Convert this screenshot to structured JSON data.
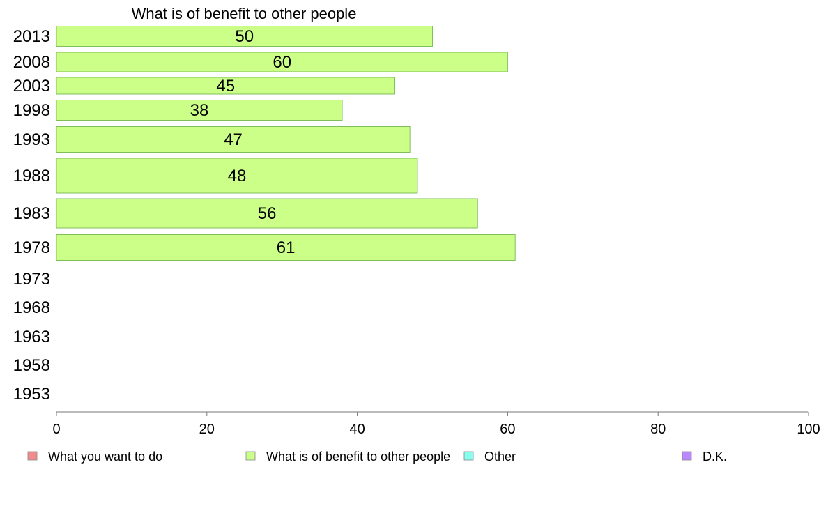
{
  "chart_data": {
    "type": "bar",
    "orientation": "horizontal",
    "title": "What is of benefit to other people",
    "categories": [
      "2013",
      "2008",
      "2003",
      "1998",
      "1993",
      "1988",
      "1983",
      "1978",
      "1973",
      "1968",
      "1963",
      "1958",
      "1953"
    ],
    "series": [
      {
        "name": "What is of benefit to other people",
        "color": "#ccff88",
        "values": [
          50,
          60,
          45,
          38,
          47,
          48,
          56,
          61,
          null,
          null,
          null,
          null,
          null
        ]
      }
    ],
    "xlim": [
      0,
      100
    ],
    "xticks": [
      0,
      20,
      40,
      60,
      80,
      100
    ],
    "grid": false,
    "legend_position": "bottom",
    "legend": [
      {
        "label": "What you want to do",
        "color": "#f28c8c"
      },
      {
        "label": "What is of benefit to other people",
        "color": "#ccff88"
      },
      {
        "label": "Other",
        "color": "#88ffee"
      },
      {
        "label": "D.K.",
        "color": "#bb88ff"
      }
    ]
  }
}
